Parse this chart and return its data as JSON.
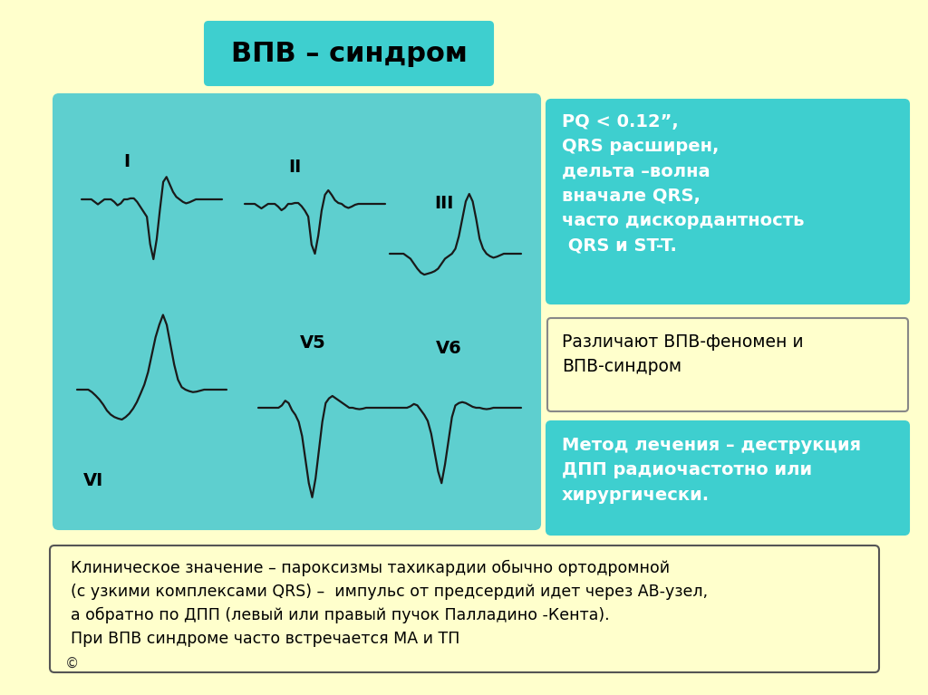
{
  "bg_color": "#FFFFCC",
  "title": "ВПВ – синдром",
  "title_bg": "#3ECFCF",
  "title_color": "#000000",
  "ecg_bg": "#5ECFCF",
  "box1_bg": "#3ECFCF",
  "box1_text": "PQ < 0.12”,\nQRS расширен,\nдельта –волна\nвначале QRS,\nчасто дискордантность\n QRS и ST-T.",
  "box1_color": "#FFFFFF",
  "box2_bg": "#FFFFCC",
  "box2_text": "Различают ВПВ-феномен и\nВПВ-синдром",
  "box2_color": "#000000",
  "box3_bg": "#3ECFCF",
  "box3_text": "Метод лечения – деструкция\nДПП радиочастотно или\nхирургически.",
  "box3_color": "#FFFFFF",
  "bottom_text": "Клиническое значение – пароксизмы тахикардии обычно ортодромной\n(с узкими комплексами QRS) –  импульс от предсердий идет через АВ-узел,\nа обратно по ДПП (левый или правый пучок Палладино -Кента).\nПри ВПВ синдроме часто встречается МА и ТП",
  "bottom_color": "#000000",
  "bottom_bg": "#FFFFCC"
}
